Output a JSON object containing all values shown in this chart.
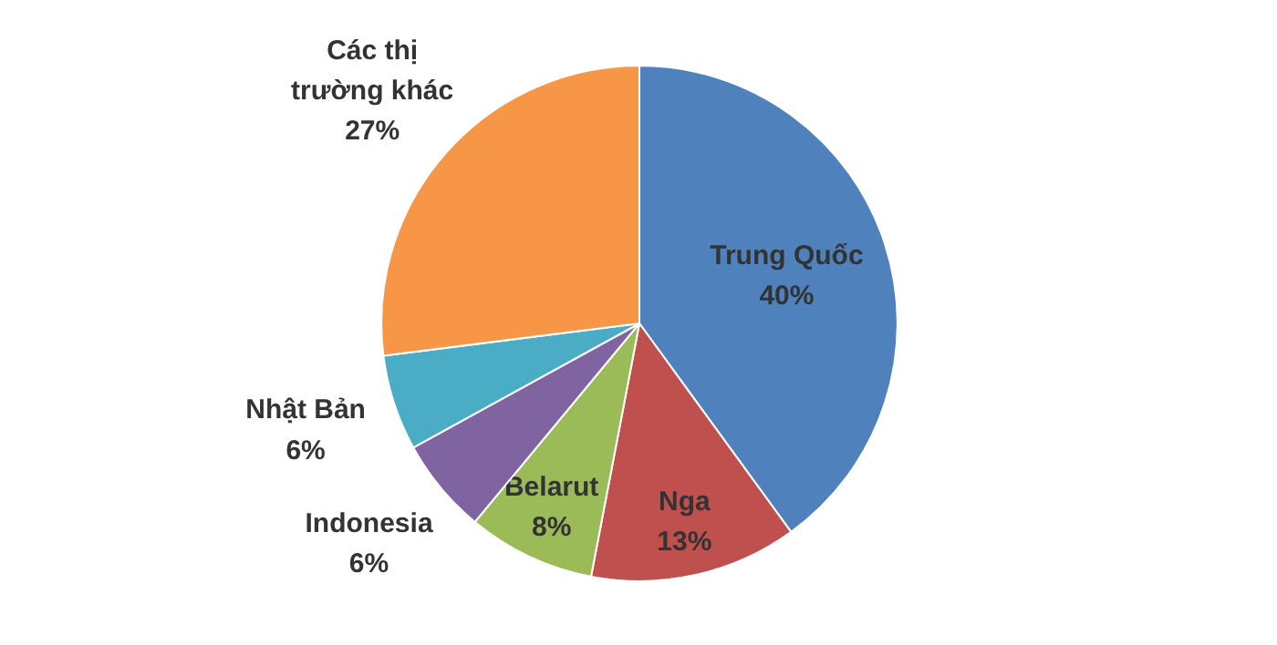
{
  "chart_data": {
    "type": "pie",
    "categories": [
      "Trung Quốc",
      "Nga",
      "Belarut",
      "Indonesia",
      "Nhật Bản",
      "Các thị trường khác"
    ],
    "values": [
      40,
      13,
      8,
      6,
      6,
      27
    ],
    "value_labels": [
      "40%",
      "13%",
      "8%",
      "6%",
      "6%",
      "27%"
    ],
    "colors": [
      "#4f81bd",
      "#c0504d",
      "#9bbb59",
      "#8064a2",
      "#4bacc6",
      "#f79646"
    ]
  }
}
